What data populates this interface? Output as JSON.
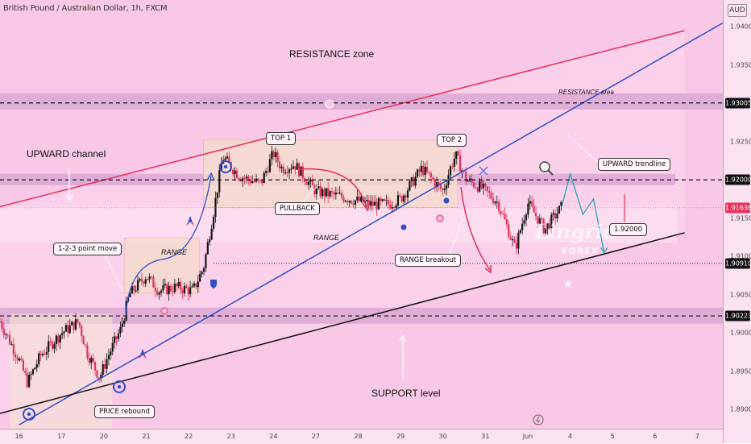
{
  "header": {
    "symbol_title": "British Pound / Australian Dollar, 1h, FXCM",
    "currency": "AUD"
  },
  "colors": {
    "background": "#f8c8e6",
    "zone_band": "#d7a3cf",
    "range_box": "#f5dccd",
    "resistance_trendline": "#e8305a",
    "upward_trendline": "#2f4fc7",
    "support_trendline": "#111111",
    "candle_up": "#151515",
    "candle_down": "#e0315e",
    "price_tag": "#e8305a"
  },
  "watermark": {
    "brand": "Lingrid",
    "sub": "FOREX"
  },
  "annotations": [
    {
      "id": "resistance-zone",
      "text": "RESISTANCE zone"
    },
    {
      "id": "resistance-area",
      "text": "RESISTANCE area"
    },
    {
      "id": "upward-channel",
      "text": "UPWARD channel"
    },
    {
      "id": "top-1",
      "text": "TOP 1"
    },
    {
      "id": "top-2",
      "text": "TOP 2"
    },
    {
      "id": "pullback",
      "text": "PULLBACK"
    },
    {
      "id": "range-1",
      "text": "RANGE"
    },
    {
      "id": "range-2",
      "text": "RANGE"
    },
    {
      "id": "point-move",
      "text": "1-2-3 point move"
    },
    {
      "id": "range-breakout",
      "text": "RANGE breakout"
    },
    {
      "id": "upward-trendline",
      "text": "UPWARD trendline"
    },
    {
      "id": "price-target",
      "text": "1.92000"
    },
    {
      "id": "price-rebound",
      "text": "PRICE rebound"
    },
    {
      "id": "support-level",
      "text": "SUPPORT level"
    }
  ],
  "chart_data": {
    "type": "candlestick",
    "title": "British Pound / Australian Dollar, 1h, FXCM",
    "y_axis": {
      "label": "AUD",
      "range": [
        1.8875,
        1.9435
      ],
      "ticks": [
        1.89,
        1.895,
        1.9,
        1.905,
        1.91,
        1.915,
        1.92,
        1.925,
        1.93,
        1.935,
        1.94
      ],
      "tick_labels": [
        "1.89000",
        "1.89500",
        "1.90000",
        "1.90500",
        "1.91000",
        "1.91500",
        "1.92000",
        "1.92500",
        "1.93000",
        "1.93500",
        "1.94000"
      ],
      "highlighted_levels": [
        {
          "value": 1.93005,
          "label": "1.93005"
        },
        {
          "value": 1.92,
          "label": "1.92000"
        },
        {
          "value": 1.91636,
          "label": "1.91636",
          "current_price": true
        },
        {
          "value": 1.9091,
          "label": "1.90910"
        },
        {
          "value": 1.90223,
          "label": "1.90223"
        }
      ]
    },
    "x_axis": {
      "day_index_range": [
        -0.45,
        16.6
      ],
      "ticks": [
        {
          "label": "16",
          "day": 0
        },
        {
          "label": "17",
          "day": 1
        },
        {
          "label": "20",
          "day": 2
        },
        {
          "label": "21",
          "day": 3
        },
        {
          "label": "22",
          "day": 4
        },
        {
          "label": "23",
          "day": 5
        },
        {
          "label": "24",
          "day": 6
        },
        {
          "label": "27",
          "day": 7
        },
        {
          "label": "28",
          "day": 8
        },
        {
          "label": "29",
          "day": 9
        },
        {
          "label": "30",
          "day": 10
        },
        {
          "label": "31",
          "day": 11
        },
        {
          "label": "Jun",
          "day": 12
        },
        {
          "label": "4",
          "day": 13
        },
        {
          "label": "5",
          "day": 14
        },
        {
          "label": "6",
          "day": 15
        },
        {
          "label": "7",
          "day": 16
        }
      ]
    },
    "price_path": [
      [
        -0.45,
        1.9015
      ],
      [
        0.0,
        1.8965
      ],
      [
        0.2,
        1.8935
      ],
      [
        0.5,
        1.897
      ],
      [
        1.0,
        1.9
      ],
      [
        1.4,
        1.9015
      ],
      [
        1.6,
        1.8975
      ],
      [
        1.9,
        1.8942
      ],
      [
        2.1,
        1.897
      ],
      [
        2.4,
        1.9005
      ],
      [
        2.6,
        1.905
      ],
      [
        3.0,
        1.9075
      ],
      [
        3.3,
        1.9055
      ],
      [
        3.7,
        1.906
      ],
      [
        4.1,
        1.9055
      ],
      [
        4.35,
        1.9085
      ],
      [
        4.6,
        1.9162
      ],
      [
        4.8,
        1.923
      ],
      [
        5.2,
        1.9205
      ],
      [
        5.7,
        1.9195
      ],
      [
        6.0,
        1.9235
      ],
      [
        6.2,
        1.9215
      ],
      [
        6.5,
        1.922
      ],
      [
        7.0,
        1.9185
      ],
      [
        7.6,
        1.9178
      ],
      [
        8.3,
        1.9168
      ],
      [
        8.7,
        1.9168
      ],
      [
        9.0,
        1.9175
      ],
      [
        9.5,
        1.9215
      ],
      [
        10.0,
        1.9185
      ],
      [
        10.2,
        1.922
      ],
      [
        10.3,
        1.9232
      ],
      [
        10.55,
        1.92
      ],
      [
        10.9,
        1.919
      ],
      [
        11.3,
        1.917
      ],
      [
        11.7,
        1.911
      ],
      [
        12.0,
        1.917
      ],
      [
        12.4,
        1.9135
      ],
      [
        12.8,
        1.9165
      ]
    ],
    "projected_path": [
      [
        12.8,
        1.9165
      ],
      [
        13.0,
        1.9208
      ],
      [
        13.3,
        1.9155
      ],
      [
        13.55,
        1.9175
      ],
      [
        13.8,
        1.9105
      ]
    ],
    "trendlines": [
      {
        "name": "resistance",
        "from": [
          -0.45,
          1.9165
        ],
        "to": [
          15.7,
          1.9395
        ]
      },
      {
        "name": "upward",
        "from": [
          0.0,
          1.888
        ],
        "to": [
          16.6,
          1.9405
        ]
      },
      {
        "name": "support",
        "from": [
          -0.45,
          1.8895
        ],
        "to": [
          15.7,
          1.9131
        ]
      }
    ],
    "zones": [
      {
        "name": "resistance",
        "from": 1.9292,
        "to": 1.9313
      },
      {
        "name": "mid-resistance",
        "from": 1.9193,
        "to": 1.9208
      },
      {
        "name": "support",
        "from": 1.9012,
        "to": 1.9033
      }
    ],
    "range_boxes": [
      {
        "name": "range-1",
        "x": [
          2.48,
          4.25
        ],
        "y": [
          1.9052,
          1.9124
        ]
      },
      {
        "name": "range-2",
        "x": [
          4.35,
          10.35
        ],
        "y": [
          1.9164,
          1.9252
        ]
      }
    ],
    "grid": false,
    "legend": "none"
  }
}
